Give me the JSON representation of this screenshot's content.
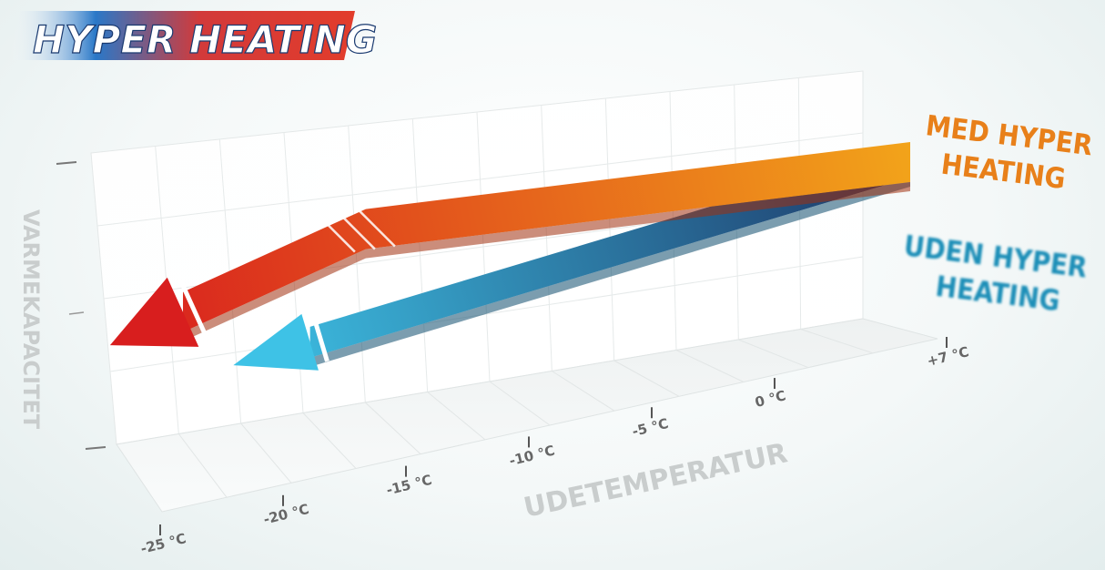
{
  "logo": {
    "text": "HYPER HEATING"
  },
  "chart_data": {
    "type": "line",
    "xlabel": "UDETEMPERATUR",
    "ylabel": "VARMEKAPACITET",
    "x_ticks": [
      "-25 °C",
      "-20 °C",
      "-15 °C",
      "-10 °C",
      "-5 °C",
      "0 °C",
      "+7 °C"
    ],
    "x_values": [
      -25,
      -20,
      -15,
      -10,
      -5,
      0,
      7
    ],
    "xlim": [
      -25,
      7
    ],
    "ylim": [
      0,
      100
    ],
    "grid": true,
    "legend_position": "right",
    "series": [
      {
        "name": "MED HYPER HEATING",
        "label_lines": [
          "MED HYPER",
          "HEATING"
        ],
        "color": "#e58b1a",
        "x": [
          -25,
          -15,
          7
        ],
        "y": [
          25,
          64,
          100
        ]
      },
      {
        "name": "UDEN HYPER HEATING",
        "label_lines": [
          "UDEN HYPER",
          "HEATING"
        ],
        "color": "#1c86a8",
        "x": [
          -20,
          7
        ],
        "y": [
          0,
          100
        ]
      }
    ]
  }
}
